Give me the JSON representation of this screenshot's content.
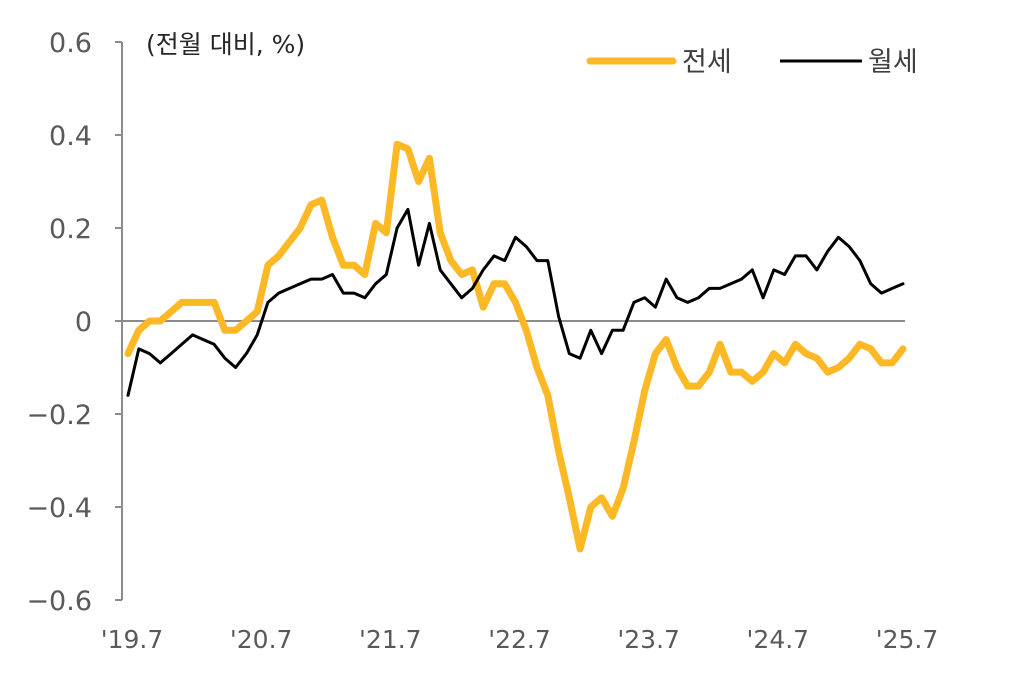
{
  "chart_data": {
    "type": "line",
    "title": "",
    "unit_label": "(전월 대비, %)",
    "xlabel": "",
    "ylabel": "(전월 대비, %)",
    "ylim": [
      -0.6,
      0.6
    ],
    "yticks": [
      0.6,
      0.4,
      0.2,
      0,
      -0.2,
      -0.4,
      -0.6
    ],
    "ytick_labels": [
      "0.6",
      "0.4",
      "0.2",
      "0",
      "−0.2",
      "−0.4",
      "−0.6"
    ],
    "xtick_labels": [
      "'19.7",
      "'20.7",
      "'21.7",
      "'22.7",
      "'23.7",
      "'24.7",
      "'25.7"
    ],
    "xtick_indices": [
      0,
      12,
      24,
      36,
      48,
      60,
      72
    ],
    "grid": false,
    "zero_line": true,
    "legend_position": "top-right",
    "x_start": "2019-07",
    "x_end": "2025-07",
    "frequency": "monthly",
    "series": [
      {
        "name": "전세",
        "color": "#FDB826",
        "line_width": 7,
        "values": [
          -0.07,
          -0.02,
          0.0,
          0.0,
          0.02,
          0.04,
          0.04,
          0.04,
          0.04,
          -0.02,
          -0.02,
          0.0,
          0.02,
          0.12,
          0.14,
          0.17,
          0.2,
          0.25,
          0.26,
          0.18,
          0.12,
          0.12,
          0.1,
          0.21,
          0.19,
          0.38,
          0.37,
          0.3,
          0.35,
          0.19,
          0.13,
          0.1,
          0.11,
          0.03,
          0.08,
          0.08,
          0.04,
          -0.02,
          -0.1,
          -0.16,
          -0.28,
          -0.38,
          -0.49,
          -0.4,
          -0.38,
          -0.42,
          -0.36,
          -0.26,
          -0.15,
          -0.07,
          -0.04,
          -0.1,
          -0.14,
          -0.14,
          -0.11,
          -0.05,
          -0.11,
          -0.11,
          -0.13,
          -0.11,
          -0.07,
          -0.09,
          -0.05,
          -0.07,
          -0.08,
          -0.11,
          -0.1,
          -0.08,
          -0.05,
          -0.06,
          -0.09,
          -0.09,
          -0.06
        ]
      },
      {
        "name": "월세",
        "color": "#000000",
        "line_width": 3,
        "values": [
          -0.16,
          -0.06,
          -0.07,
          -0.09,
          -0.07,
          -0.05,
          -0.03,
          -0.04,
          -0.05,
          -0.08,
          -0.1,
          -0.07,
          -0.03,
          0.04,
          0.06,
          0.07,
          0.08,
          0.09,
          0.09,
          0.1,
          0.06,
          0.06,
          0.05,
          0.08,
          0.1,
          0.2,
          0.24,
          0.12,
          0.21,
          0.11,
          0.08,
          0.05,
          0.07,
          0.11,
          0.14,
          0.13,
          0.18,
          0.16,
          0.13,
          0.13,
          0.01,
          -0.07,
          -0.08,
          -0.02,
          -0.07,
          -0.02,
          -0.02,
          0.04,
          0.05,
          0.03,
          0.09,
          0.05,
          0.04,
          0.05,
          0.07,
          0.07,
          0.08,
          0.09,
          0.11,
          0.05,
          0.11,
          0.1,
          0.14,
          0.14,
          0.11,
          0.15,
          0.18,
          0.16,
          0.13,
          0.08,
          0.06,
          0.07,
          0.08
        ]
      }
    ]
  },
  "legend": {
    "items": [
      {
        "label": "전세",
        "color": "#FDB826"
      },
      {
        "label": "월세",
        "color": "#000000"
      }
    ]
  },
  "axis": {
    "unit_label": "(전월 대비, %)",
    "y_labels": [
      "0.6",
      "0.4",
      "0.2",
      "0",
      "−0.2",
      "−0.4",
      "−0.6"
    ],
    "x_labels": [
      "'19.7",
      "'20.7",
      "'21.7",
      "'22.7",
      "'23.7",
      "'24.7",
      "'25.7"
    ]
  }
}
